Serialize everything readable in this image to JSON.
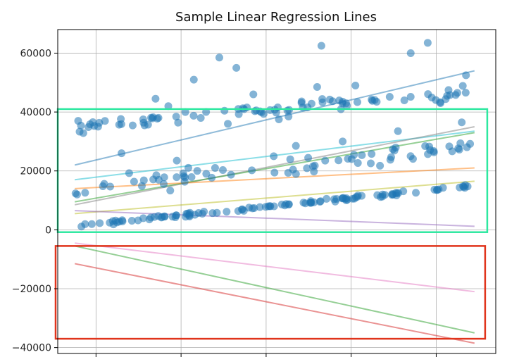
{
  "chart_data": {
    "type": "scatter",
    "title": "Sample Linear Regression Lines",
    "xlabel": "",
    "ylabel": "",
    "xlim": [
      0,
      10.3
    ],
    "ylim": [
      -42000,
      68000
    ],
    "x_ticks": [
      0.9,
      2.9,
      4.9,
      6.9,
      8.9
    ],
    "y_ticks": [
      -40000,
      -20000,
      0,
      20000,
      40000,
      60000
    ],
    "y_tick_labels": [
      "−40000",
      "−20000",
      "0",
      "20000",
      "40000",
      "60000"
    ],
    "grid": true,
    "point_color": "#1f77b4",
    "scatter_clusters": [
      {
        "from": [
          0.4,
          1200
        ],
        "to": [
          9.8,
          15000
        ],
        "count": 110,
        "spread": 900
      },
      {
        "from": [
          0.4,
          14000
        ],
        "to": [
          9.8,
          28000
        ],
        "count": 70,
        "spread": 5000
      },
      {
        "from": [
          0.4,
          35000
        ],
        "to": [
          9.8,
          47000
        ],
        "count": 80,
        "spread": 3500
      }
    ],
    "scatter_outliers": [
      [
        2.3,
        44500
      ],
      [
        2.6,
        42000
      ],
      [
        3.0,
        40000
      ],
      [
        3.2,
        51000
      ],
      [
        3.8,
        58500
      ],
      [
        4.2,
        55000
      ],
      [
        4.6,
        46000
      ],
      [
        5.4,
        40500
      ],
      [
        6.1,
        48500
      ],
      [
        6.2,
        62500
      ],
      [
        7.0,
        49000
      ],
      [
        7.5,
        43500
      ],
      [
        8.3,
        60000
      ],
      [
        8.7,
        63500
      ],
      [
        9.0,
        43000
      ],
      [
        9.6,
        52500
      ],
      [
        4.0,
        36000
      ],
      [
        5.2,
        37500
      ],
      [
        6.7,
        30000
      ],
      [
        8.0,
        33500
      ],
      [
        9.5,
        36500
      ],
      [
        1.5,
        26000
      ],
      [
        2.8,
        23500
      ],
      [
        3.7,
        21000
      ],
      [
        5.6,
        28500
      ]
    ],
    "regression_lines": [
      {
        "color": "#1f77b4",
        "x": [
          0.4,
          9.8
        ],
        "y": [
          22000,
          54000
        ]
      },
      {
        "color": "#17becf",
        "x": [
          0.4,
          9.8
        ],
        "y": [
          17000,
          33500
        ]
      },
      {
        "color": "#7f7f7f",
        "x": [
          0.4,
          9.8
        ],
        "y": [
          8500,
          35000
        ]
      },
      {
        "color": "#2ca02c",
        "x": [
          0.4,
          9.8
        ],
        "y": [
          9500,
          33000
        ]
      },
      {
        "color": "#ff7f0e",
        "x": [
          0.4,
          9.8
        ],
        "y": [
          14000,
          21000
        ]
      },
      {
        "color": "#bcbd22",
        "x": [
          0.4,
          9.8
        ],
        "y": [
          5500,
          16500
        ]
      },
      {
        "color": "#9467bd",
        "x": [
          0.4,
          9.8
        ],
        "y": [
          6500,
          1200
        ]
      },
      {
        "color": "#2ca02c",
        "x": [
          0.4,
          9.8
        ],
        "y": [
          -5500,
          -35000
        ]
      },
      {
        "color": "#d62728",
        "x": [
          0.4,
          9.8
        ],
        "y": [
          -11500,
          -38500
        ]
      },
      {
        "color": "#e377c2",
        "x": [
          0.4,
          9.8
        ],
        "y": [
          -4500,
          -21000
        ]
      }
    ],
    "highlight_boxes": [
      {
        "color": "#2ee8a0",
        "x": [
          0.0,
          10.1
        ],
        "y": [
          -800,
          41000
        ]
      },
      {
        "color": "#e0341c",
        "x": [
          -0.05,
          10.05
        ],
        "y": [
          -5500,
          -37000
        ]
      }
    ]
  }
}
